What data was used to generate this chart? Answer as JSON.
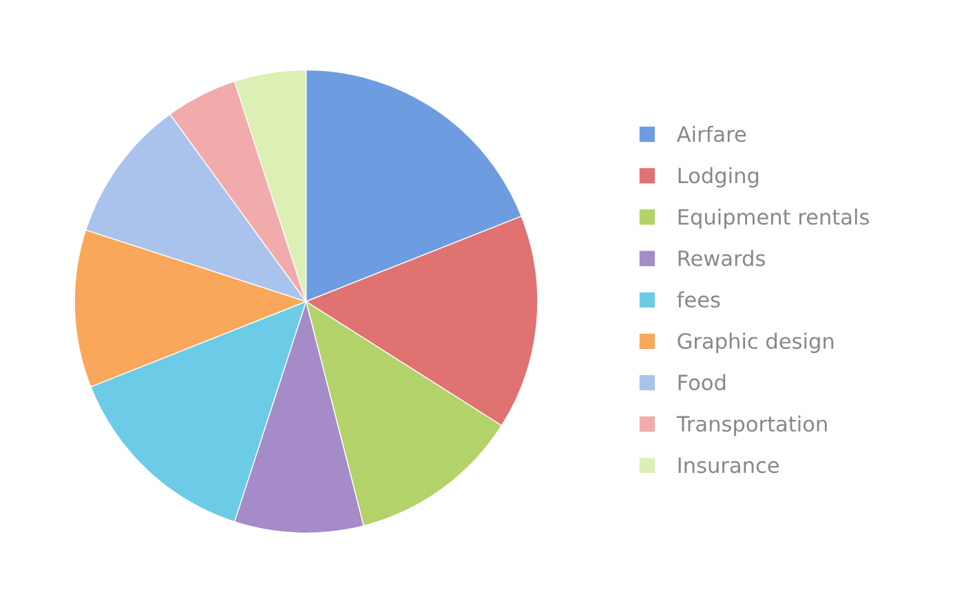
{
  "chart_data": {
    "type": "pie",
    "categories": [
      "Airfare",
      "Lodging",
      "Equipment rentals",
      "Rewards",
      "fees",
      "Graphic design",
      "Food",
      "Transportation",
      "Insurance"
    ],
    "values": [
      19,
      15,
      12,
      9,
      14,
      11,
      10,
      5,
      5
    ],
    "colors": [
      "#6d9de0",
      "#e07272",
      "#b3d26a",
      "#a58bc8",
      "#6ccbe6",
      "#f9a75a",
      "#a9c3ec",
      "#f2abab",
      "#dcefb5"
    ],
    "legend": "right"
  }
}
